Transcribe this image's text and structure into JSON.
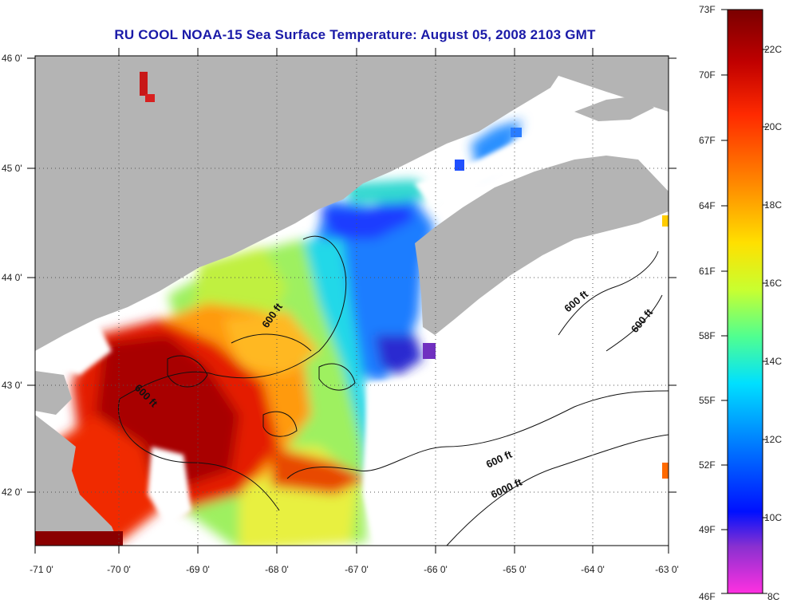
{
  "title": "RU COOL  NOAA-15  Sea Surface Temperature:  August 05, 2008 2103 GMT",
  "map": {
    "lon_ticks": [
      "-71 0'",
      "-70 0'",
      "-69 0'",
      "-68 0'",
      "-67 0'",
      "-66 0'",
      "-65 0'",
      "-64 0'",
      "-63 0'"
    ],
    "lat_ticks": [
      "46 0'",
      "45 0'",
      "44 0'",
      "43 0'",
      "42 0'"
    ],
    "contour_labels": [
      "600 ft",
      "600 ft",
      "600 ft",
      "600 ft",
      "600 ft",
      "6000 ft"
    ],
    "colors": {
      "land": "#b4b4b4",
      "no_data": "#ffffff",
      "grid": "#555555"
    }
  },
  "colorbar": {
    "fahrenheit_labels": [
      "73F",
      "70F",
      "67F",
      "64F",
      "61F",
      "58F",
      "55F",
      "52F",
      "49F",
      "46F"
    ],
    "celsius_labels": [
      "22C",
      "20C",
      "18C",
      "16C",
      "14C",
      "12C",
      "10C",
      "8C"
    ],
    "gradient": [
      "#7a0000",
      "#c00000",
      "#ff2a00",
      "#ff8a00",
      "#ffe000",
      "#c8ff30",
      "#50ff90",
      "#00e0ff",
      "#0080ff",
      "#0010ff",
      "#8a30d0",
      "#ff30e0"
    ]
  }
}
